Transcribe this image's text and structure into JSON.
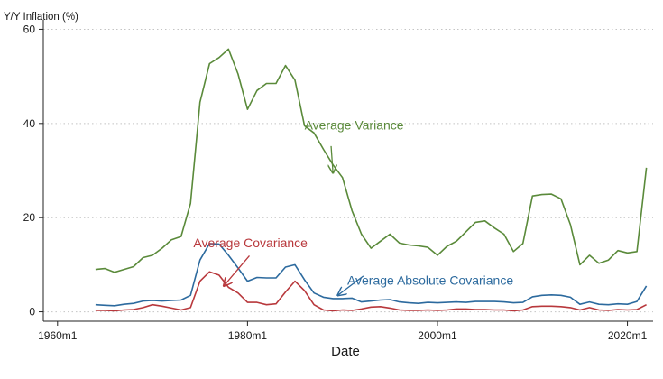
{
  "chart_data": {
    "type": "line",
    "ylabel": "Y/Y Inflation (%)",
    "xlabel": "Date",
    "xlim": [
      1958.5,
      2022.7
    ],
    "ylim": [
      -2,
      62
    ],
    "xticks": [
      {
        "value": 1960,
        "label": "1960m1"
      },
      {
        "value": 1980,
        "label": "1980m1"
      },
      {
        "value": 2000,
        "label": "2000m1"
      },
      {
        "value": 2020,
        "label": "2020m1"
      }
    ],
    "yticks": [
      {
        "value": 0,
        "label": "0"
      },
      {
        "value": 20,
        "label": "20"
      },
      {
        "value": 40,
        "label": "40"
      },
      {
        "value": 60,
        "label": "60"
      }
    ],
    "grid": "horizontal, dotted",
    "legend": "none (inline annotations)",
    "x": [
      1964,
      1965,
      1966,
      1967,
      1968,
      1969,
      1970,
      1971,
      1972,
      1973,
      1974,
      1975,
      1976,
      1977,
      1978,
      1979,
      1980,
      1981,
      1982,
      1983,
      1984,
      1985,
      1986,
      1987,
      1988,
      1989,
      1990,
      1991,
      1992,
      1993,
      1994,
      1995,
      1996,
      1997,
      1998,
      1999,
      2000,
      2001,
      2002,
      2003,
      2004,
      2005,
      2006,
      2007,
      2008,
      2009,
      2010,
      2011,
      2012,
      2013,
      2014,
      2015,
      2016,
      2017,
      2018,
      2019,
      2020,
      2021,
      2022
    ],
    "series": [
      {
        "name": "Average Variance",
        "color": "#5a8a3a",
        "values": [
          9,
          9.2,
          8.4,
          9,
          9.6,
          11.5,
          12,
          13.5,
          15.3,
          16,
          23,
          44.5,
          52.7,
          54,
          55.8,
          50.5,
          43,
          47,
          48.5,
          48.5,
          52.3,
          49.2,
          39.5,
          38,
          34.5,
          31.2,
          28.5,
          21.5,
          16.5,
          13.5,
          15,
          16.5,
          14.6,
          14.2,
          14,
          13.7,
          12,
          13.9,
          15,
          17,
          19,
          19.3,
          17.8,
          16.5,
          12.8,
          14.5,
          24.6,
          24.9,
          25,
          24,
          18.5,
          10,
          12,
          10.3,
          11,
          13,
          12.5,
          12.8,
          30.6
        ]
      },
      {
        "name": "Average Absolute Covariance",
        "color": "#2c6a9e",
        "values": [
          1.5,
          1.4,
          1.3,
          1.6,
          1.8,
          2.3,
          2.4,
          2.3,
          2.4,
          2.5,
          3.5,
          11,
          14.5,
          14.4,
          12,
          9.3,
          6.5,
          7.3,
          7.2,
          7.2,
          9.5,
          10,
          6.8,
          4,
          3.1,
          2.8,
          2.8,
          2.9,
          2.1,
          2.3,
          2.5,
          2.6,
          2.1,
          1.9,
          1.8,
          2,
          1.9,
          2,
          2.1,
          2,
          2.2,
          2.2,
          2.2,
          2.1,
          1.9,
          2,
          3.2,
          3.5,
          3.6,
          3.5,
          3.1,
          1.6,
          2.1,
          1.6,
          1.5,
          1.7,
          1.6,
          2.2,
          5.5
        ]
      },
      {
        "name": "Average Covariance",
        "color": "#b8383c",
        "values": [
          0.3,
          0.3,
          0.2,
          0.4,
          0.5,
          0.9,
          1.5,
          1.2,
          0.8,
          0.4,
          0.9,
          6.5,
          8.5,
          7.8,
          5.2,
          4,
          2,
          2,
          1.5,
          1.7,
          4.2,
          6.5,
          4.5,
          1.5,
          0.4,
          0.2,
          0.4,
          0.3,
          0.6,
          1,
          1.1,
          0.8,
          0.4,
          0.3,
          0.3,
          0.4,
          0.3,
          0.4,
          0.6,
          0.6,
          0.5,
          0.5,
          0.4,
          0.4,
          0.2,
          0.4,
          1.1,
          1.2,
          1.2,
          1.1,
          0.9,
          0.4,
          0.9,
          0.4,
          0.3,
          0.5,
          0.4,
          0.5,
          1.5
        ]
      }
    ],
    "annotations": [
      {
        "text": "Average Variance",
        "series": "Average Variance",
        "color": "#5a8a3a",
        "arrow_to": {
          "x": 1989,
          "y": 29.5
        }
      },
      {
        "text": "Average Covariance",
        "series": "Average Covariance",
        "color": "#b8383c",
        "arrow_to": {
          "x": 1977.5,
          "y": 5.5
        }
      },
      {
        "text": "Average Absolute Covariance",
        "series": "Average Absolute Covariance",
        "color": "#2c6a9e",
        "arrow_to": {
          "x": 1989.5,
          "y": 3.5
        }
      }
    ]
  }
}
